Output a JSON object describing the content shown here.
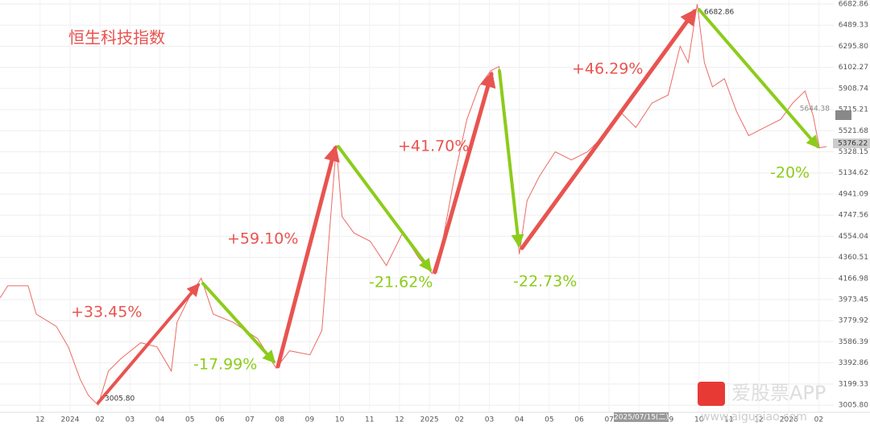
{
  "chart_data": {
    "type": "line",
    "title": "恒生科技指数",
    "xlim": [
      -1.34,
      26.5
    ],
    "ylim": [
      2940,
      6720
    ],
    "grid": true,
    "xticks": [
      {
        "value": 0,
        "label": "12"
      },
      {
        "value": 1,
        "label": "2024"
      },
      {
        "value": 2,
        "label": "02"
      },
      {
        "value": 3,
        "label": "03"
      },
      {
        "value": 4,
        "label": "04"
      },
      {
        "value": 5,
        "label": "05"
      },
      {
        "value": 6,
        "label": "06"
      },
      {
        "value": 7,
        "label": "07"
      },
      {
        "value": 8,
        "label": "08"
      },
      {
        "value": 9,
        "label": "09"
      },
      {
        "value": 10,
        "label": "10"
      },
      {
        "value": 11,
        "label": "11"
      },
      {
        "value": 12,
        "label": "12"
      },
      {
        "value": 13,
        "label": "2025"
      },
      {
        "value": 14,
        "label": "02"
      },
      {
        "value": 15,
        "label": "03"
      },
      {
        "value": 16,
        "label": "04"
      },
      {
        "value": 17,
        "label": "05"
      },
      {
        "value": 18,
        "label": "06"
      },
      {
        "value": 19,
        "label": "07"
      },
      {
        "value": 20,
        "label": "08"
      },
      {
        "value": 21,
        "label": "09"
      },
      {
        "value": 22,
        "label": "10"
      },
      {
        "value": 23,
        "label": "11"
      },
      {
        "value": 24,
        "label": "12"
      },
      {
        "value": 25,
        "label": "2026"
      },
      {
        "value": 26,
        "label": "02"
      }
    ],
    "yticks": [
      6682.86,
      6489.33,
      {
        "value": 6295.8,
        "label": "6295.80"
      },
      6102.27,
      5908.74,
      5715.21,
      5521.68,
      5328.15,
      5134.62,
      4941.09,
      4747.56,
      4554.04,
      4360.51,
      4166.98,
      3973.45,
      3779.92,
      3586.39,
      3392.86,
      3199.33,
      {
        "value": 3005.8,
        "label": "3005.80"
      }
    ],
    "x": [
      -1.34,
      -1.08,
      -0.4,
      -0.13,
      0.54,
      0.94,
      1.34,
      1.61,
      1.94,
      2.28,
      2.69,
      3.36,
      3.9,
      4.38,
      4.57,
      4.97,
      5.38,
      5.78,
      6.45,
      7.26,
      7.88,
      8.33,
      9.01,
      9.41,
      9.68,
      9.89,
      10.08,
      10.48,
      11.02,
      11.56,
      12.1,
      12.63,
      13.09,
      13.44,
      13.84,
      14.25,
      14.65,
      15.05,
      15.32,
      15.59,
      16.0,
      16.26,
      16.67,
      17.2,
      17.74,
      18.28,
      18.82,
      19.35,
      19.89,
      20.43,
      20.97,
      21.37,
      21.64,
      21.94,
      22.18,
      22.45,
      22.85,
      23.25,
      23.66,
      24.19,
      24.73,
      25.13,
      25.54,
      25.81,
      26.02,
      26.26
    ],
    "series": [
      {
        "name": "恒生科技指数",
        "color": "#ec6b66",
        "values": [
          3988,
          4100,
          4100,
          3840,
          3728,
          3540,
          3242,
          3095,
          3005.8,
          3318,
          3430,
          3578,
          3540,
          3318,
          3765,
          3988,
          4170,
          3840,
          3765,
          3616,
          3345,
          3504,
          3467,
          3690,
          4658,
          5387,
          4733,
          4584,
          4509,
          4286,
          4584,
          4360,
          4211,
          4509,
          5104,
          5626,
          5924,
          6072,
          6110,
          5551,
          4390,
          4881,
          5104,
          5328,
          5254,
          5328,
          5477,
          5700,
          5551,
          5775,
          5849,
          6296,
          6147,
          6682.86,
          6147,
          5924,
          5998,
          5700,
          5477,
          5551,
          5626,
          5775,
          5886,
          5663,
          5365,
          5376.22
        ]
      }
    ],
    "annotations": [
      "+33.45%",
      "-17.99%",
      "+59.10%",
      "-21.62%",
      "+41.70%",
      "-22.73%",
      "+46.29%",
      "-20%"
    ],
    "point_labels": [
      "3005.80",
      "6682.86"
    ],
    "price_labels": [
      "5644.38",
      "5376.22"
    ],
    "crosshair_label": "2025/07/15(二)",
    "watermark_text": "爱股票APP",
    "watermark_url": "www.aigupiao.com"
  }
}
